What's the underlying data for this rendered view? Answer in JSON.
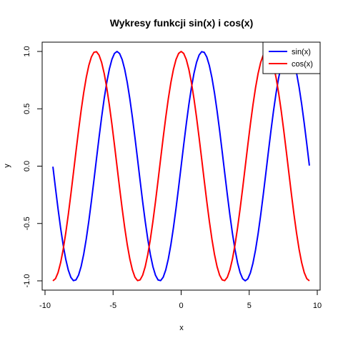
{
  "chart_data": {
    "type": "line",
    "title": "Wykresy funkcji sin(x) i cos(x)",
    "xlabel": "x",
    "ylabel": "y",
    "xlim": [
      -10,
      10
    ],
    "ylim": [
      -1.0,
      1.0
    ],
    "x_ticks": [
      -10,
      -5,
      0,
      5,
      10
    ],
    "x_tick_labels": [
      "-10",
      "-5",
      "0",
      "5",
      "10"
    ],
    "y_ticks": [
      -1.0,
      -0.5,
      0.0,
      0.5,
      1.0
    ],
    "y_tick_labels": [
      "-1.0",
      "-0.5",
      "0.0",
      "0.5",
      "1.0"
    ],
    "grid": false,
    "legend_position": "top-right",
    "series": [
      {
        "name": "sin(x)",
        "function": "sin",
        "x_from": -9.42,
        "x_to": 9.42,
        "points": 101,
        "color": "#0000ff"
      },
      {
        "name": "cos(x)",
        "function": "cos",
        "x_from": -9.42,
        "x_to": 9.42,
        "points": 101,
        "color": "#ff0000"
      }
    ]
  }
}
